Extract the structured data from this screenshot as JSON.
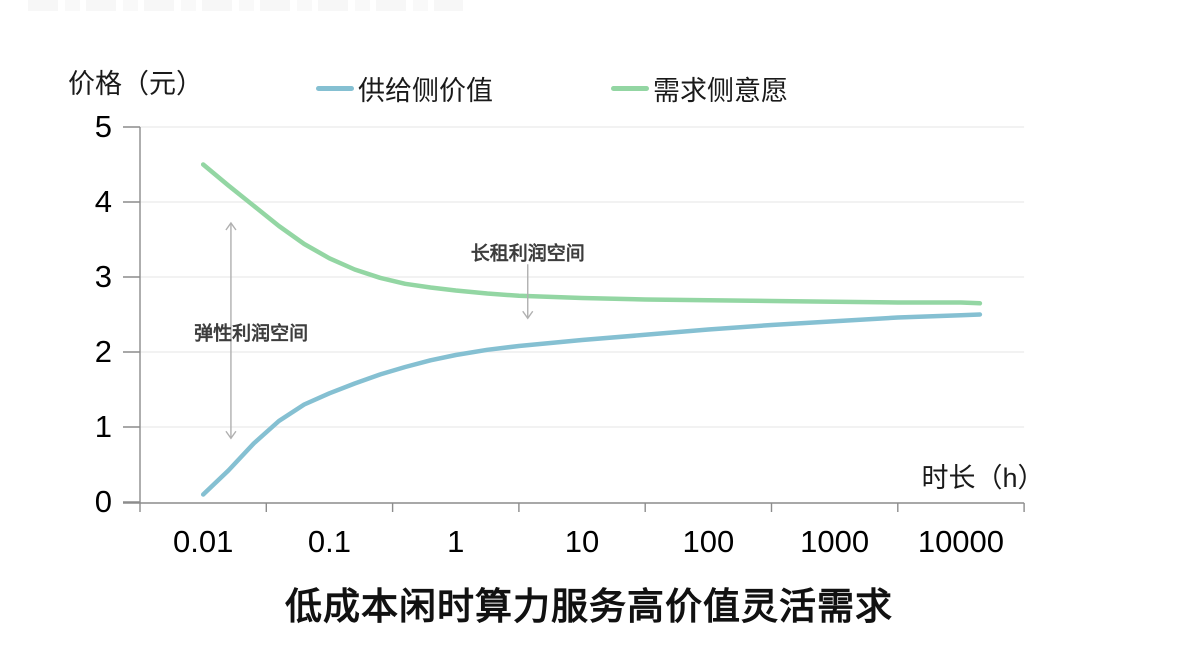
{
  "chart_data": {
    "type": "line",
    "x_scale": "log10",
    "title": "低成本闲时算力服务高价值灵活需求",
    "xlabel": "时长（h）",
    "ylabel": "价格（元）",
    "x_ticks": [
      "0.01",
      "0.1",
      "1",
      "10",
      "100",
      "1000",
      "10000"
    ],
    "y_ticks": [
      "5",
      "4",
      "3",
      "2",
      "1",
      "0"
    ],
    "ylim": [
      0,
      5
    ],
    "grid": true,
    "legend_position": "top",
    "series": [
      {
        "name": "供给侧价值",
        "color": "#85c0d2",
        "points": [
          [
            -2,
            0.1
          ],
          [
            -1.8,
            0.42
          ],
          [
            -1.6,
            0.78
          ],
          [
            -1.4,
            1.08
          ],
          [
            -1.2,
            1.3
          ],
          [
            -1,
            1.45
          ],
          [
            -0.8,
            1.58
          ],
          [
            -0.6,
            1.7
          ],
          [
            -0.4,
            1.8
          ],
          [
            -0.2,
            1.89
          ],
          [
            0,
            1.96
          ],
          [
            0.25,
            2.03
          ],
          [
            0.5,
            2.08
          ],
          [
            1,
            2.16
          ],
          [
            1.5,
            2.23
          ],
          [
            2,
            2.3
          ],
          [
            2.5,
            2.36
          ],
          [
            3,
            2.41
          ],
          [
            3.5,
            2.46
          ],
          [
            4,
            2.49
          ],
          [
            4.15,
            2.5
          ]
        ]
      },
      {
        "name": "需求侧意愿",
        "color": "#93d6a3",
        "points": [
          [
            -2,
            4.5
          ],
          [
            -1.8,
            4.22
          ],
          [
            -1.6,
            3.95
          ],
          [
            -1.4,
            3.68
          ],
          [
            -1.2,
            3.44
          ],
          [
            -1,
            3.25
          ],
          [
            -0.8,
            3.1
          ],
          [
            -0.6,
            2.99
          ],
          [
            -0.4,
            2.91
          ],
          [
            -0.2,
            2.86
          ],
          [
            0,
            2.82
          ],
          [
            0.25,
            2.78
          ],
          [
            0.5,
            2.75
          ],
          [
            1,
            2.72
          ],
          [
            1.5,
            2.7
          ],
          [
            2,
            2.69
          ],
          [
            2.5,
            2.68
          ],
          [
            3,
            2.67
          ],
          [
            3.5,
            2.66
          ],
          [
            4,
            2.66
          ],
          [
            4.15,
            2.65
          ]
        ]
      }
    ],
    "annotations": [
      {
        "text": "弹性利润空间",
        "style": "vertical-double-arrow",
        "arrow_x_log": -1.78,
        "arrow_value_top": 3.72,
        "arrow_value_bottom": 0.85,
        "label_x_log": -1.62,
        "label_value": 2.27
      },
      {
        "text": "长租利润空间",
        "style": "down-arrow",
        "arrow_x_log": 0.57,
        "arrow_value_top": 3.17,
        "arrow_value_bottom": 2.45,
        "label_x_log": 0.57,
        "label_value": 3.33
      }
    ]
  },
  "colors": {
    "axis": "#8c8c8c",
    "grid": "#ebebeb",
    "annotation_arrow": "#b0b0b0",
    "text": "#1a1a1a"
  }
}
